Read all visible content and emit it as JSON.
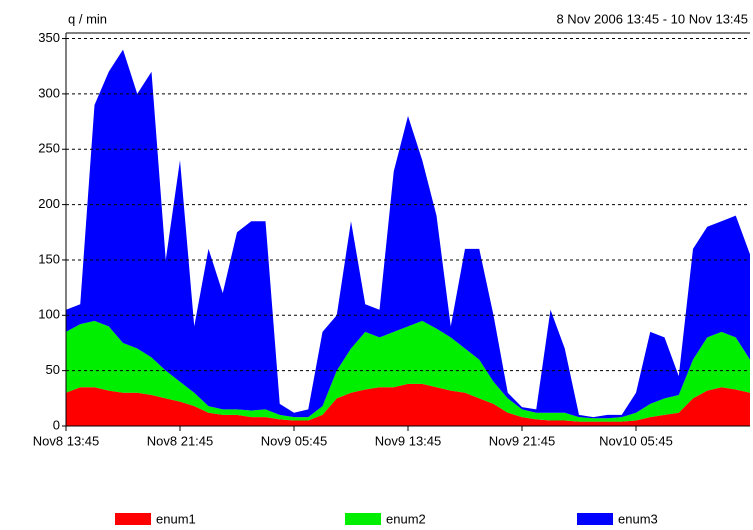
{
  "chart_data": {
    "type": "stacked_area",
    "ylabel": "q / min",
    "subtitle": "8 Nov 2006 13:45 - 10 Nov 13:45",
    "categories": [
      "Nov8 13:45",
      null,
      null,
      null,
      null,
      null,
      null,
      null,
      "Nov8 21:45",
      null,
      null,
      null,
      null,
      null,
      null,
      null,
      "Nov9 05:45",
      null,
      null,
      null,
      null,
      null,
      null,
      null,
      "Nov9 13:45",
      null,
      null,
      null,
      null,
      null,
      null,
      null,
      "Nov9 21:45",
      null,
      null,
      null,
      null,
      null,
      null,
      null,
      "Nov10 05:45",
      null,
      null,
      null,
      null,
      null,
      null,
      null,
      null
    ],
    "series": [
      {
        "name": "enum1",
        "color": "#ff0000",
        "values": [
          30,
          35,
          35,
          32,
          30,
          30,
          28,
          25,
          22,
          18,
          12,
          10,
          10,
          8,
          8,
          6,
          5,
          5,
          10,
          25,
          30,
          33,
          35,
          35,
          38,
          38,
          35,
          32,
          30,
          25,
          20,
          12,
          8,
          6,
          5,
          5,
          4,
          4,
          4,
          4,
          5,
          8,
          10,
          12,
          25,
          32,
          35,
          33,
          30
        ]
      },
      {
        "name": "enum2",
        "color": "#00ee00",
        "values": [
          55,
          57,
          60,
          58,
          45,
          40,
          34,
          25,
          18,
          12,
          6,
          5,
          5,
          6,
          7,
          4,
          3,
          3,
          8,
          25,
          40,
          52,
          45,
          50,
          52,
          57,
          53,
          48,
          40,
          35,
          20,
          13,
          7,
          6,
          7,
          7,
          4,
          3,
          3,
          4,
          7,
          12,
          15,
          16,
          35,
          48,
          50,
          47,
          30
        ]
      },
      {
        "name": "enum3",
        "color": "#0000ff",
        "values": [
          20,
          18,
          195,
          230,
          265,
          230,
          258,
          100,
          200,
          60,
          142,
          105,
          160,
          171,
          170,
          10,
          4,
          7,
          67,
          50,
          115,
          25,
          25,
          145,
          190,
          145,
          102,
          10,
          90,
          100,
          60,
          5,
          2,
          3,
          93,
          58,
          2,
          1,
          3,
          2,
          18,
          65,
          55,
          17,
          100,
          100,
          100,
          110,
          95
        ]
      }
    ],
    "ylim": [
      0,
      355
    ],
    "yticks": [
      0,
      50,
      100,
      150,
      200,
      250,
      300,
      350
    ],
    "grid": true
  }
}
